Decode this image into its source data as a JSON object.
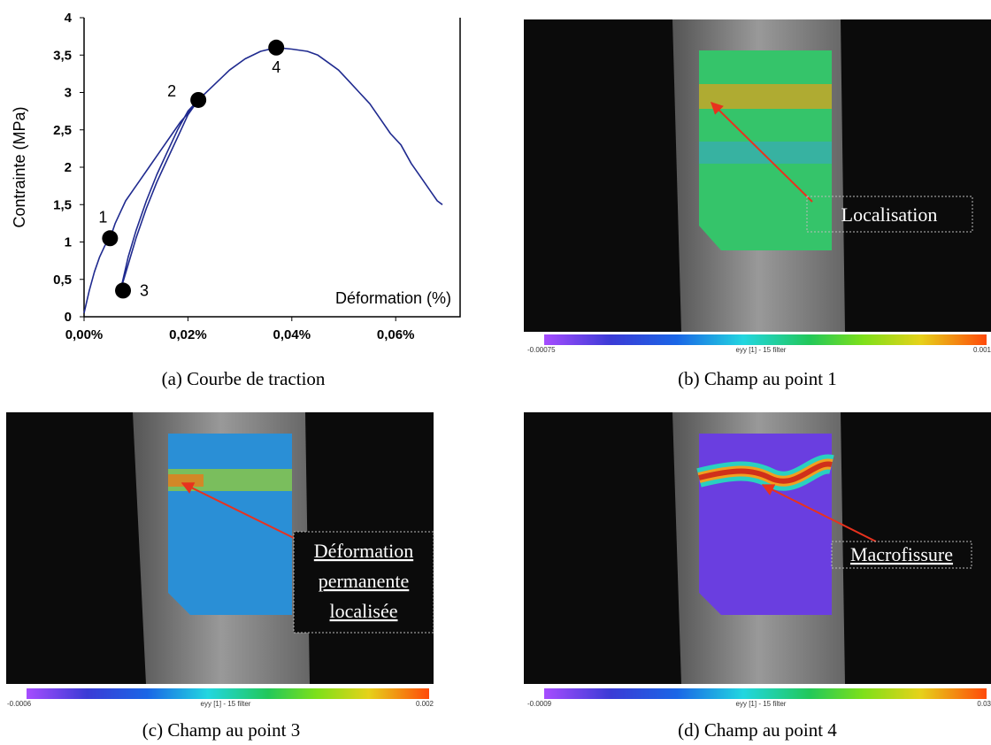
{
  "chart_data": {
    "type": "line",
    "caption": "(a) Courbe de traction",
    "ylabel": "Contrainte (MPa)",
    "xlabel": "Déformation (%)",
    "color": "#1f2a8f",
    "xlim": [
      0,
      0.0724
    ],
    "ylim": [
      0,
      4
    ],
    "xticks": [
      {
        "value": 0,
        "label": "0,00%"
      },
      {
        "value": 0.02,
        "label": "0,02%"
      },
      {
        "value": 0.04,
        "label": "0,04%"
      },
      {
        "value": 0.06,
        "label": "0,06%"
      }
    ],
    "yticks": [
      0,
      {
        "value": 0.5,
        "label": "0,5"
      },
      1,
      {
        "value": 1.5,
        "label": "1,5"
      },
      2,
      {
        "value": 2.5,
        "label": "2,5"
      },
      3,
      {
        "value": 3.5,
        "label": "3,5"
      },
      4
    ],
    "x": [
      0.0,
      0.001,
      0.002,
      0.003,
      0.004,
      0.005,
      0.006,
      0.007,
      0.008,
      0.0095,
      0.011,
      0.0125,
      0.014,
      0.0155,
      0.017,
      0.0185,
      0.02,
      0.022,
      0.02,
      0.018,
      0.016,
      0.014,
      0.012,
      0.01,
      0.0085,
      0.007,
      0.0085,
      0.01,
      0.012,
      0.014,
      0.016,
      0.018,
      0.02,
      0.022,
      0.025,
      0.028,
      0.031,
      0.034,
      0.037,
      0.04,
      0.043,
      0.045,
      0.047,
      0.049,
      0.051,
      0.053,
      0.055,
      0.057,
      0.059,
      0.061,
      0.063,
      0.065,
      0.067,
      0.068,
      0.069
    ],
    "values": [
      0.05,
      0.35,
      0.6,
      0.8,
      0.95,
      1.05,
      1.25,
      1.4,
      1.55,
      1.7,
      1.85,
      2.0,
      2.15,
      2.3,
      2.45,
      2.6,
      2.72,
      2.9,
      2.7,
      2.4,
      2.1,
      1.8,
      1.45,
      1.05,
      0.7,
      0.35,
      0.8,
      1.15,
      1.55,
      1.9,
      2.2,
      2.5,
      2.75,
      2.9,
      3.1,
      3.3,
      3.45,
      3.55,
      3.6,
      3.58,
      3.55,
      3.5,
      3.4,
      3.3,
      3.15,
      3.0,
      2.85,
      2.65,
      2.45,
      2.3,
      2.05,
      1.85,
      1.65,
      1.55,
      1.5
    ],
    "points": [
      {
        "label": "1",
        "x": 0.005,
        "y": 1.05
      },
      {
        "label": "2",
        "x": 0.022,
        "y": 2.9
      },
      {
        "label": "3",
        "x": 0.0075,
        "y": 0.35
      },
      {
        "label": "4",
        "x": 0.037,
        "y": 3.6
      }
    ]
  },
  "panels": [
    {
      "caption": "(b) Champ au point 1",
      "colorbar": {
        "min": "-0.00075",
        "title": "eyy [1] - 15 filter",
        "max": "0.001"
      },
      "annotation": [
        "Localisation"
      ]
    },
    {
      "caption": "(c) Champ au point 3",
      "colorbar": {
        "min": "-0.0006",
        "title": "eyy [1] - 15 filter",
        "max": "0.002"
      },
      "annotation": [
        "Déformation",
        "permanente",
        "localisée"
      ]
    },
    {
      "caption": "(d) Champ au point 4",
      "colorbar": {
        "min": "-0.0009",
        "title": "eyy [1] - 15 filter",
        "max": "0.03"
      },
      "annotation": [
        "Macrofissure"
      ]
    }
  ]
}
